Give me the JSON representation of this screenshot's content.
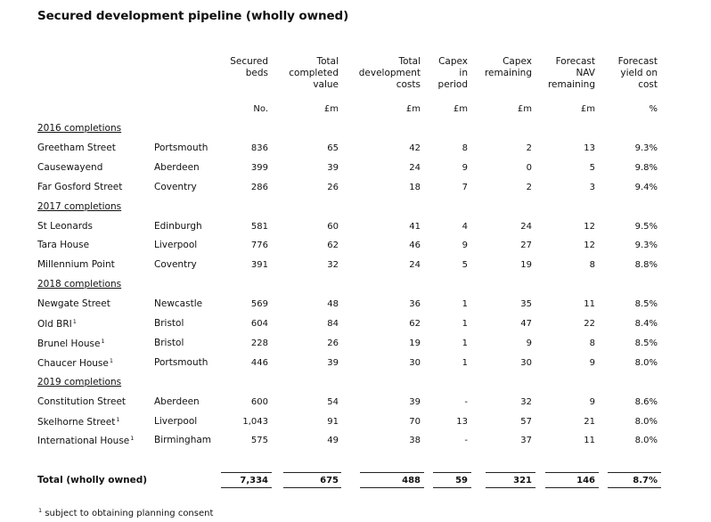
{
  "title": "Secured development pipeline (wholly owned)",
  "columns": [
    {
      "header": "Secured\nbeds",
      "unit": "No."
    },
    {
      "header": "Total\ncompleted\nvalue",
      "unit": "£m"
    },
    {
      "header": "Total\ndevelopment\ncosts",
      "unit": "£m"
    },
    {
      "header": "Capex\nin\nperiod",
      "unit": "£m"
    },
    {
      "header": "Capex\nremaining",
      "unit": "£m"
    },
    {
      "header": "Forecast\nNAV\nremaining",
      "unit": "£m"
    },
    {
      "header": "Forecast\nyield on\ncost",
      "unit": "%"
    }
  ],
  "groups": [
    {
      "label": "2016 completions",
      "rows": [
        {
          "name": "Greetham Street",
          "footnote": "",
          "city": "Portsmouth",
          "values": [
            "836",
            "65",
            "42",
            "8",
            "2",
            "13",
            "9.3%"
          ]
        },
        {
          "name": "Causewayend",
          "footnote": "",
          "city": "Aberdeen",
          "values": [
            "399",
            "39",
            "24",
            "9",
            "0",
            "5",
            "9.8%"
          ]
        },
        {
          "name": "Far Gosford Street",
          "footnote": "",
          "city": "Coventry",
          "values": [
            "286",
            "26",
            "18",
            "7",
            "2",
            "3",
            "9.4%"
          ]
        }
      ]
    },
    {
      "label": "2017 completions",
      "rows": [
        {
          "name": "St Leonards",
          "footnote": "",
          "city": "Edinburgh",
          "values": [
            "581",
            "60",
            "41",
            "4",
            "24",
            "12",
            "9.5%"
          ]
        },
        {
          "name": "Tara House",
          "footnote": "",
          "city": "Liverpool",
          "values": [
            "776",
            "62",
            "46",
            "9",
            "27",
            "12",
            "9.3%"
          ]
        },
        {
          "name": "Millennium Point",
          "footnote": "",
          "city": "Coventry",
          "values": [
            "391",
            "32",
            "24",
            "5",
            "19",
            "8",
            "8.8%"
          ]
        }
      ]
    },
    {
      "label": "2018 completions",
      "rows": [
        {
          "name": "Newgate Street",
          "footnote": "",
          "city": "Newcastle",
          "values": [
            "569",
            "48",
            "36",
            "1",
            "35",
            "11",
            "8.5%"
          ]
        },
        {
          "name": "Old BRI",
          "footnote": "1",
          "city": "Bristol",
          "values": [
            "604",
            "84",
            "62",
            "1",
            "47",
            "22",
            "8.4%"
          ]
        },
        {
          "name": "Brunel House",
          "footnote": "1",
          "city": "Bristol",
          "values": [
            "228",
            "26",
            "19",
            "1",
            "9",
            "8",
            "8.5%"
          ]
        },
        {
          "name": "Chaucer House",
          "footnote": "1",
          "city": "Portsmouth",
          "values": [
            "446",
            "39",
            "30",
            "1",
            "30",
            "9",
            "8.0%"
          ]
        }
      ]
    },
    {
      "label": "2019 completions",
      "rows": [
        {
          "name": "Constitution Street",
          "footnote": "",
          "city": "Aberdeen",
          "values": [
            "600",
            "54",
            "39",
            "-",
            "32",
            "9",
            "8.6%"
          ]
        },
        {
          "name": "Skelhorne Street",
          "footnote": "1",
          "city": "Liverpool",
          "values": [
            "1,043",
            "91",
            "70",
            "13",
            "57",
            "21",
            "8.0%"
          ]
        },
        {
          "name": "International House",
          "footnote": "1",
          "city": "Birmingham",
          "values": [
            "575",
            "49",
            "38",
            "-",
            "37",
            "11",
            "8.0%"
          ]
        }
      ]
    }
  ],
  "total": {
    "label": "Total (wholly owned)",
    "values": [
      "7,334",
      "675",
      "488",
      "59",
      "321",
      "146",
      "8.7%"
    ]
  },
  "footnote": {
    "marker": "1",
    "text": "subject to obtaining planning consent"
  }
}
